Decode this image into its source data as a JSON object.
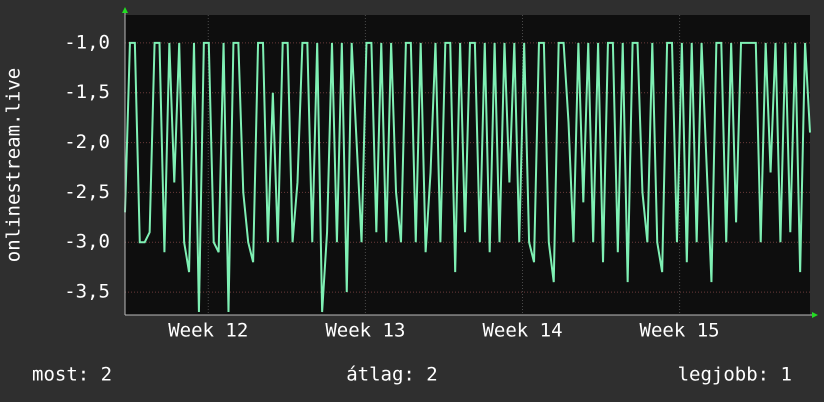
{
  "chart_data": {
    "type": "line",
    "ylabel": "onlinestream.live",
    "ylim": [
      -3.73,
      -0.72
    ],
    "yticks": [
      {
        "value": -1.0,
        "label": "-1,0"
      },
      {
        "value": -1.5,
        "label": "-1,5"
      },
      {
        "value": -2.0,
        "label": "-2,0"
      },
      {
        "value": -2.5,
        "label": "-2,5"
      },
      {
        "value": -3.0,
        "label": "-3,0"
      },
      {
        "value": -3.5,
        "label": "-3,5"
      }
    ],
    "xlim": [
      11.47,
      15.83
    ],
    "xticks": [
      {
        "value": 12,
        "label": "Week 12"
      },
      {
        "value": 13,
        "label": "Week 13"
      },
      {
        "value": 14,
        "label": "Week 14"
      },
      {
        "value": 15,
        "label": "Week 15"
      }
    ],
    "grid": true,
    "series": [
      {
        "color": "#7ff0b4",
        "values": [
          -2.7,
          -1,
          -1,
          -3,
          -3,
          -2.9,
          -1,
          -1,
          -3.1,
          -1,
          -2.4,
          -1,
          -3,
          -3.3,
          -1,
          -3.7,
          -1,
          -1,
          -3,
          -3.1,
          -1,
          -3.7,
          -1,
          -1,
          -2.5,
          -3,
          -3.2,
          -1,
          -1,
          -3,
          -1.5,
          -3,
          -1,
          -1,
          -3,
          -2.4,
          -1,
          -1,
          -3,
          -1,
          -3.7,
          -2.9,
          -1,
          -3,
          -1,
          -3.5,
          -1,
          -2,
          -3,
          -1,
          -1,
          -2.9,
          -1,
          -3,
          -1,
          -2.5,
          -3,
          -1,
          -1,
          -3,
          -1,
          -3.1,
          -2.3,
          -1,
          -3,
          -1,
          -1,
          -3.3,
          -1,
          -2.9,
          -1,
          -1,
          -3,
          -1,
          -3.1,
          -1,
          -3,
          -1,
          -2.4,
          -1,
          -3,
          -1,
          -3,
          -3.2,
          -1,
          -1,
          -3,
          -3.4,
          -1,
          -1,
          -1.8,
          -3,
          -1,
          -2.6,
          -1,
          -3,
          -1,
          -3.2,
          -1,
          -1,
          -3.1,
          -1,
          -3.4,
          -1,
          -1,
          -2.5,
          -3,
          -1,
          -3,
          -3.3,
          -1,
          -1,
          -3,
          -1,
          -3.2,
          -1,
          -3,
          -1,
          -2.2,
          -3.4,
          -1,
          -1,
          -3,
          -1,
          -2.8,
          -1,
          -1,
          -1,
          -1,
          -3,
          -1,
          -2.3,
          -1,
          -3,
          -1,
          -2.9,
          -1,
          -3.3,
          -1,
          -1.9
        ]
      }
    ],
    "footer": {
      "current": "most: 2",
      "average": "átlag: 2",
      "best": "legjobb: 1"
    }
  }
}
